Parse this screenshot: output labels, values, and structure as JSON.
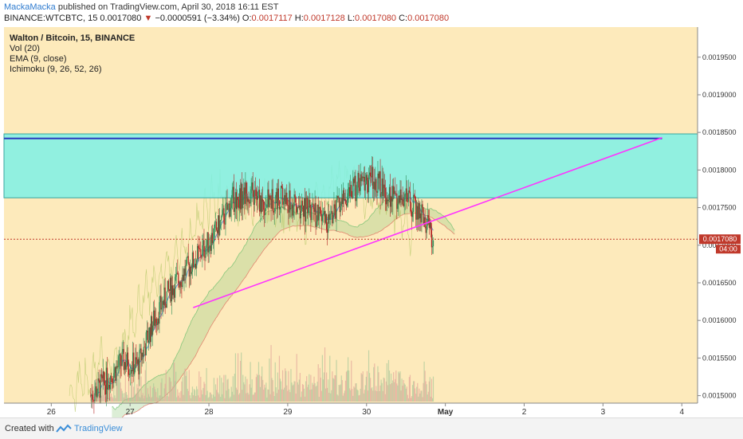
{
  "header": {
    "author": "MackaMacka",
    "published": "published on TradingView.com, April 30, 2018 16:11 EST",
    "symbol": "BINANCE:WTCBTC, 15",
    "last": "0.0017080",
    "arrow": "▼",
    "change": "−0.0000591 (−3.34%)",
    "o_label": "O:",
    "o_val": "0.0017117",
    "h_label": "H:",
    "h_val": "0.0017128",
    "l_label": "L:",
    "l_val": "0.0017080",
    "c_label": "C:",
    "c_val": "0.0017080"
  },
  "legend": {
    "title": "Walton / Bitcoin, 15, BINANCE",
    "vol": "Vol (20)",
    "ema": "EMA (9, close)",
    "ichimoku": "Ichimoku (9, 26, 52, 26)"
  },
  "price_tag": {
    "value": "0.0017080",
    "countdown": "04:00"
  },
  "footer": {
    "created": "Created with",
    "brand": "TradingView"
  },
  "colors": {
    "background": "#fdeabb",
    "zone": "#7ef1e6",
    "resistance": "#2b3bbd",
    "trendline": "#ff33ff",
    "price_line": "#c0392b",
    "up": "#2e8b57",
    "down": "#b22222"
  },
  "chart_data": {
    "type": "candlestick",
    "title": "Walton / Bitcoin, 15, BINANCE",
    "x_ticks": [
      "26",
      "27",
      "28",
      "29",
      "30",
      "May",
      "2",
      "3",
      "4"
    ],
    "y_ticks": [
      "0.0015000",
      "0.0015500",
      "0.0016000",
      "0.0016500",
      "0.0017000",
      "0.0017500",
      "0.0018000",
      "0.0018500",
      "0.0019000",
      "0.0019500"
    ],
    "ylim": [
      0.00149,
      0.00199
    ],
    "grid": false,
    "last_price": 0.001708,
    "resistance_zone": [
      0.001763,
      0.001848
    ],
    "resistance_line": 0.001842,
    "trendline": {
      "from": {
        "x": 27.8,
        "y": 0.001617
      },
      "to": {
        "x": 33.75,
        "y": 0.001843
      }
    },
    "price_path": [
      {
        "x": 26.5,
        "y": 0.0015
      },
      {
        "x": 26.7,
        "y": 0.00152
      },
      {
        "x": 26.9,
        "y": 0.001545
      },
      {
        "x": 27.1,
        "y": 0.00154
      },
      {
        "x": 27.3,
        "y": 0.0016
      },
      {
        "x": 27.5,
        "y": 0.00164
      },
      {
        "x": 27.7,
        "y": 0.001665
      },
      {
        "x": 27.9,
        "y": 0.00169
      },
      {
        "x": 28.1,
        "y": 0.00172
      },
      {
        "x": 28.3,
        "y": 0.00176
      },
      {
        "x": 28.5,
        "y": 0.00177
      },
      {
        "x": 28.7,
        "y": 0.001755
      },
      {
        "x": 28.9,
        "y": 0.001765
      },
      {
        "x": 29.1,
        "y": 0.00175
      },
      {
        "x": 29.3,
        "y": 0.001745
      },
      {
        "x": 29.5,
        "y": 0.00173
      },
      {
        "x": 29.7,
        "y": 0.00176
      },
      {
        "x": 29.9,
        "y": 0.00178
      },
      {
        "x": 30.1,
        "y": 0.00179
      },
      {
        "x": 30.3,
        "y": 0.001765
      },
      {
        "x": 30.5,
        "y": 0.00176
      },
      {
        "x": 30.7,
        "y": 0.00174
      },
      {
        "x": 30.85,
        "y": 0.001708
      }
    ]
  }
}
